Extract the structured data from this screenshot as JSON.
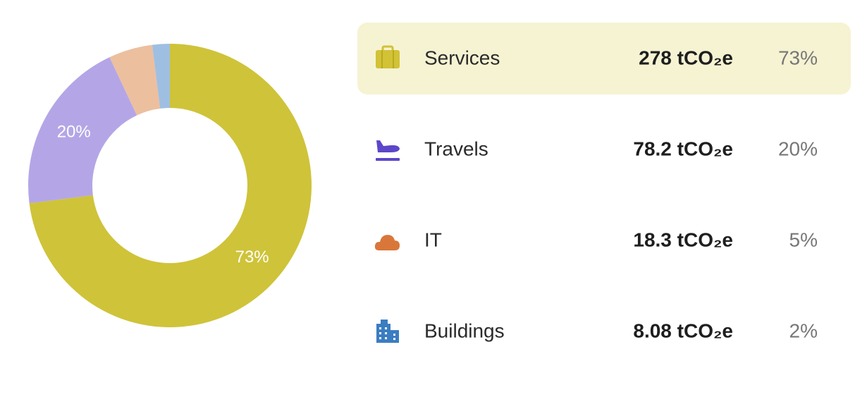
{
  "chart_data": {
    "type": "donut",
    "categories": [
      "Services",
      "Travels",
      "IT",
      "Buildings"
    ],
    "values": [
      73,
      20,
      5,
      2
    ],
    "value_labels": [
      "73%",
      "20%",
      "5%",
      "2%"
    ],
    "emission_labels": [
      "278 tCO₂e",
      "78.2 tCO₂e",
      "18.3 tCO₂e",
      "8.08 tCO₂e"
    ],
    "colors": [
      "#cfc33a",
      "#b4a6e6",
      "#ecbf9f",
      "#9fbfe2"
    ]
  }
}
